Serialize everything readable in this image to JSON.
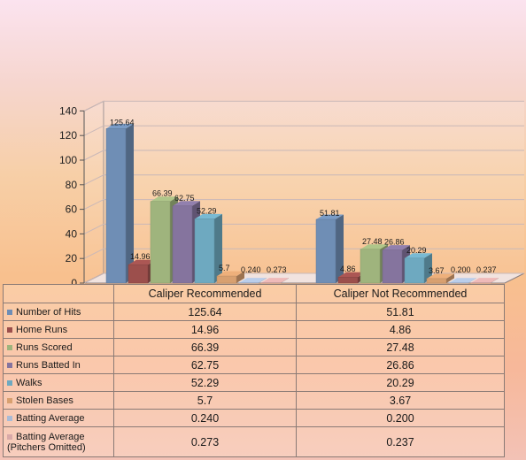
{
  "chart_data": {
    "type": "bar",
    "categories": [
      "Caliper Recommended",
      "Caliper Not Recommended"
    ],
    "ylim": [
      0,
      140
    ],
    "yticks": [
      0,
      20,
      40,
      60,
      80,
      100,
      120,
      140
    ],
    "grid": true,
    "legend": "table-below",
    "series": [
      {
        "name": "Number of Hits",
        "values": [
          125.64,
          51.81
        ],
        "labels": [
          "125.64",
          "51.81"
        ],
        "color": "#6f8eb5"
      },
      {
        "name": "Home Runs",
        "values": [
          14.96,
          4.86
        ],
        "labels": [
          "14.96",
          "4.86"
        ],
        "color": "#9c4f4c"
      },
      {
        "name": "Runs Scored",
        "values": [
          66.39,
          27.48
        ],
        "labels": [
          "66.39",
          "27.48"
        ],
        "color": "#9fb47d"
      },
      {
        "name": "Runs Batted In",
        "values": [
          62.75,
          26.86
        ],
        "labels": [
          "62.75",
          "26.86"
        ],
        "color": "#85749e"
      },
      {
        "name": "Walks",
        "values": [
          52.29,
          20.29
        ],
        "labels": [
          "52.29",
          "20.29"
        ],
        "color": "#6ea9c0"
      },
      {
        "name": "Stolen Bases",
        "values": [
          5.7,
          3.67
        ],
        "labels": [
          "5.7",
          "3.67"
        ],
        "color": "#d8a070"
      },
      {
        "name": "Batting Average",
        "values": [
          0.24,
          0.2
        ],
        "labels": [
          "0.240",
          "0.200"
        ],
        "color": "#a9bbd6"
      },
      {
        "name": "Batting Average (Pitchers Omitted)",
        "values": [
          0.273,
          0.237
        ],
        "labels": [
          "0.273",
          "0.237"
        ],
        "color": "#d9a9a8"
      }
    ]
  }
}
